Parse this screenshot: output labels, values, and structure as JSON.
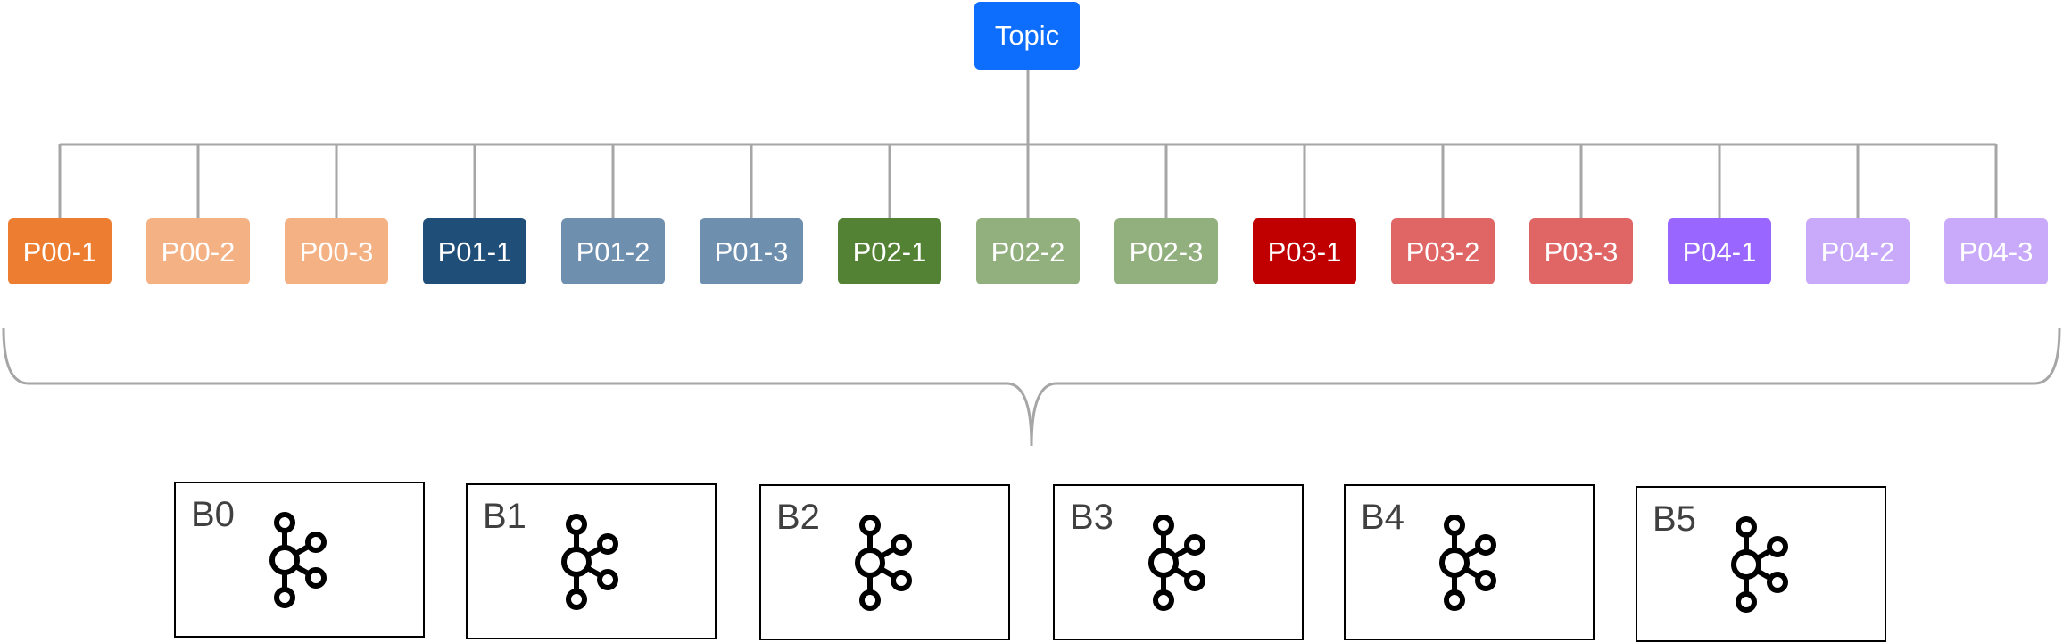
{
  "topic": {
    "label": "Topic",
    "color": "#0D6EFD"
  },
  "partitions": [
    {
      "label": "P00-1",
      "color": "#ED7D31",
      "text_color": "#FFFFFF"
    },
    {
      "label": "P00-2",
      "color": "#F4B183",
      "text_color": "#FFFFFF"
    },
    {
      "label": "P00-3",
      "color": "#F4B183",
      "text_color": "#FFFFFF"
    },
    {
      "label": "P01-1",
      "color": "#1F4E79",
      "text_color": "#FFFFFF"
    },
    {
      "label": "P01-2",
      "color": "#6F8FAF",
      "text_color": "#FFFFFF"
    },
    {
      "label": "P01-3",
      "color": "#6F8FAF",
      "text_color": "#FFFFFF"
    },
    {
      "label": "P02-1",
      "color": "#548235",
      "text_color": "#FFFFFF"
    },
    {
      "label": "P02-2",
      "color": "#92B07E",
      "text_color": "#FFFFFF"
    },
    {
      "label": "P02-3",
      "color": "#92B07E",
      "text_color": "#FFFFFF"
    },
    {
      "label": "P03-1",
      "color": "#C00000",
      "text_color": "#FFFFFF"
    },
    {
      "label": "P03-2",
      "color": "#E06666",
      "text_color": "#FFFFFF"
    },
    {
      "label": "P03-3",
      "color": "#E06666",
      "text_color": "#FFFFFF"
    },
    {
      "label": "P04-1",
      "color": "#9966FF",
      "text_color": "#FFFFFF"
    },
    {
      "label": "P04-2",
      "color": "#C9A9FA",
      "text_color": "#FFFFFF"
    },
    {
      "label": "P04-3",
      "color": "#C9A9FA",
      "text_color": "#FFFFFF"
    }
  ],
  "brokers": [
    {
      "label": "B0",
      "icon": "kafka-icon"
    },
    {
      "label": "B1",
      "icon": "kafka-icon"
    },
    {
      "label": "B2",
      "icon": "kafka-icon"
    },
    {
      "label": "B3",
      "icon": "kafka-icon"
    },
    {
      "label": "B4",
      "icon": "kafka-icon"
    },
    {
      "label": "B5",
      "icon": "kafka-icon"
    }
  ],
  "colors": {
    "connector": "#A6A6A6",
    "broker_border": "#000000",
    "broker_label": "#404040",
    "icon": "#000000"
  }
}
